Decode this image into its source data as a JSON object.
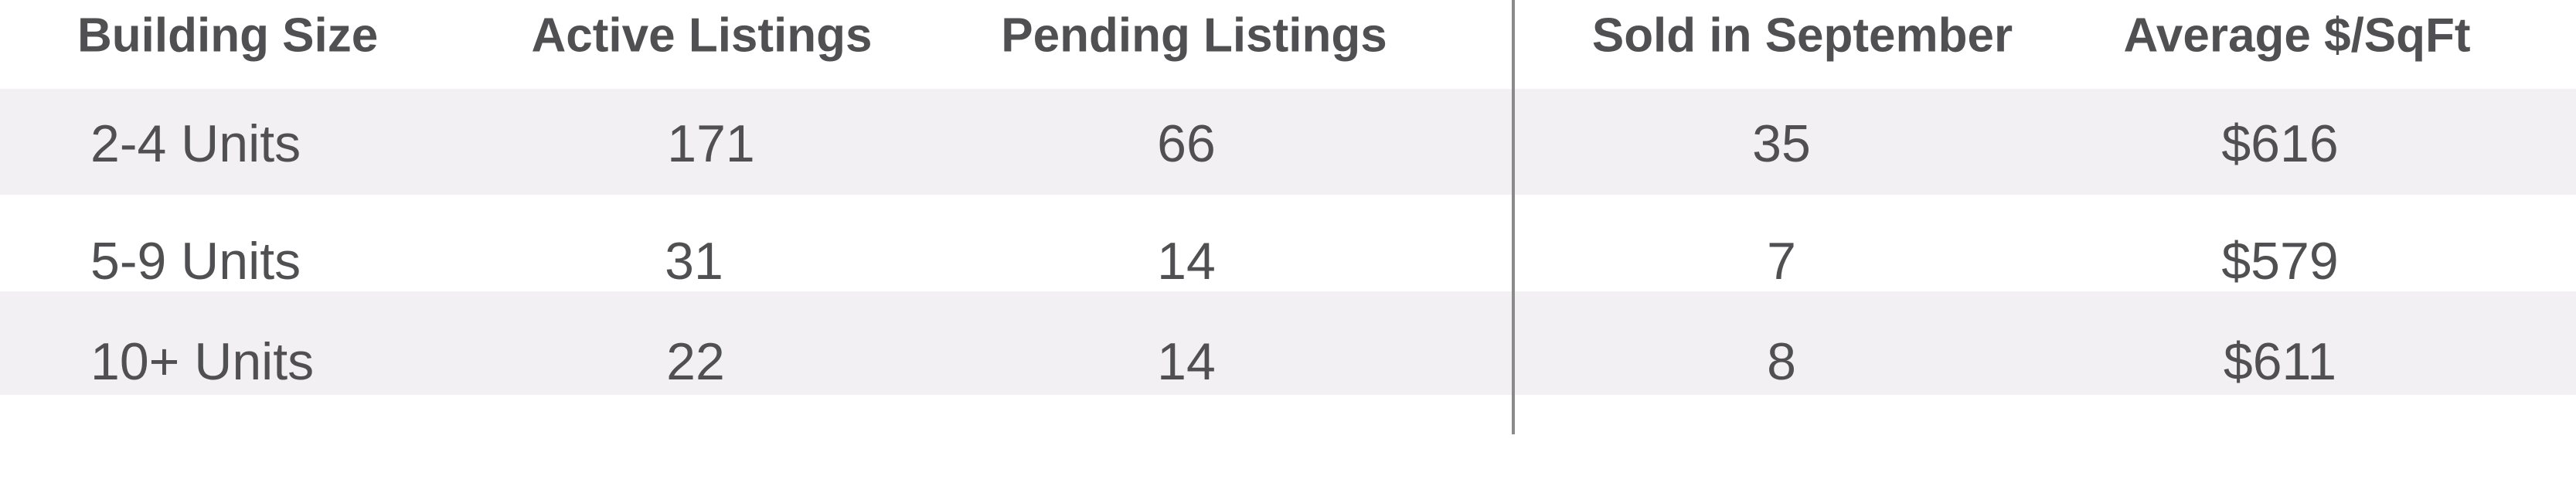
{
  "table": {
    "headers": [
      "Building Size",
      "Active Listings",
      "Pending Listings",
      "Sold in September",
      "Average $/SqFt"
    ],
    "rows": [
      [
        "2-4 Units",
        "171",
        "66",
        "35",
        "$616"
      ],
      [
        "5-9 Units",
        "31",
        "14",
        "7",
        "$579"
      ],
      [
        "10+ Units",
        "22",
        "14",
        "8",
        "$611"
      ]
    ]
  },
  "colors": {
    "text": "#505053",
    "stripe": "#f2f0f3",
    "divider": "#8a8a8a"
  }
}
